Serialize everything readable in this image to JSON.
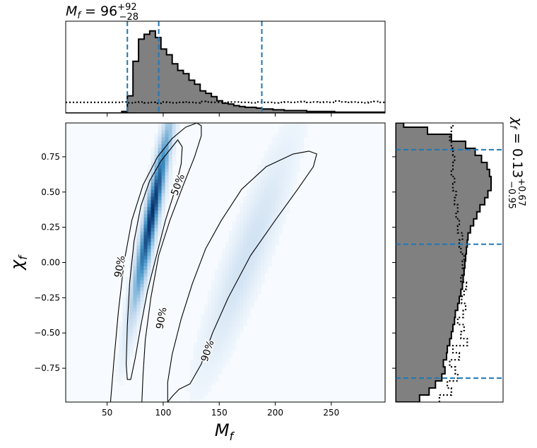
{
  "chart_data": [
    {
      "type": "heatmap",
      "panel": "joint",
      "xlabel": "M_f",
      "ylabel": "χ_f",
      "xlim": [
        13,
        298
      ],
      "ylim": [
        -0.99,
        0.99
      ],
      "xticks": [
        50,
        100,
        150,
        200,
        250
      ],
      "xticklabels": [
        "50",
        "100",
        "150",
        "200",
        "250"
      ],
      "yticks": [
        -0.75,
        -0.5,
        -0.25,
        0.0,
        0.25,
        0.5,
        0.75
      ],
      "yticklabels": [
        "−0.75",
        "−0.50",
        "−0.25",
        "0.00",
        "0.25",
        "0.50",
        "0.75"
      ],
      "colormap": "Blues",
      "contour_labels": [
        "50%",
        "90%",
        "90%",
        "90%"
      ],
      "contours": [
        {
          "name": "50%",
          "points": [
            [
              68,
              -0.83
            ],
            [
              67,
              -0.72
            ],
            [
              68,
              -0.45
            ],
            [
              70,
              -0.15
            ],
            [
              74,
              0.15
            ],
            [
              80,
              0.4
            ],
            [
              88,
              0.58
            ],
            [
              98,
              0.72
            ],
            [
              108,
              0.82
            ],
            [
              113,
              0.87
            ],
            [
              117,
              0.82
            ],
            [
              116,
              0.7
            ],
            [
              110,
              0.5
            ],
            [
              102,
              0.3
            ],
            [
              94,
              0.05
            ],
            [
              86,
              -0.2
            ],
            [
              80,
              -0.45
            ],
            [
              75,
              -0.68
            ],
            [
              71,
              -0.83
            ]
          ]
        },
        {
          "name": "90%",
          "points": [
            [
              53,
              -0.99
            ],
            [
              56,
              -0.7
            ],
            [
              60,
              -0.35
            ],
            [
              65,
              0.0
            ],
            [
              72,
              0.3
            ],
            [
              82,
              0.55
            ],
            [
              95,
              0.75
            ],
            [
              108,
              0.88
            ],
            [
              120,
              0.96
            ],
            [
              130,
              0.99
            ],
            [
              134,
              0.97
            ],
            [
              134,
              0.9
            ],
            [
              128,
              0.75
            ],
            [
              118,
              0.55
            ],
            [
              106,
              0.3
            ],
            [
              96,
              0.05
            ],
            [
              89,
              -0.25
            ],
            [
              84,
              -0.55
            ],
            [
              82,
              -0.8
            ],
            [
              81,
              -0.99
            ]
          ]
        },
        {
          "name": "90%",
          "points": [
            [
              104,
              -0.99
            ],
            [
              104,
              -0.85
            ],
            [
              108,
              -0.65
            ],
            [
              116,
              -0.4
            ],
            [
              126,
              -0.15
            ],
            [
              138,
              0.1
            ],
            [
              152,
              0.3
            ],
            [
              170,
              0.52
            ],
            [
              192,
              0.68
            ],
            [
              216,
              0.77
            ],
            [
              230,
              0.79
            ],
            [
              237,
              0.77
            ],
            [
              234,
              0.68
            ],
            [
              220,
              0.52
            ],
            [
              200,
              0.3
            ],
            [
              178,
              0.05
            ],
            [
              158,
              -0.25
            ],
            [
              144,
              -0.5
            ],
            [
              134,
              -0.72
            ],
            [
              124,
              -0.86
            ],
            [
              114,
              -0.9
            ],
            [
              108,
              -0.95
            ]
          ]
        }
      ]
    },
    {
      "type": "area",
      "panel": "top-marginal",
      "title": "M_f = 96^{+92}_{-28}",
      "median": 96,
      "interval": [
        68,
        188
      ],
      "x": [
        13,
        63,
        68,
        73,
        78,
        83,
        88,
        93,
        98,
        103,
        108,
        113,
        118,
        123,
        128,
        133,
        138,
        143,
        148,
        153,
        158,
        163,
        168,
        173,
        178,
        183,
        188,
        193,
        198,
        203,
        208,
        213,
        218,
        223,
        228,
        233,
        238,
        243,
        248,
        253,
        258,
        263,
        268,
        273,
        278,
        283,
        288,
        293,
        298
      ],
      "values": [
        0,
        0.02,
        0.21,
        0.63,
        0.9,
        0.96,
        1.0,
        0.92,
        0.78,
        0.71,
        0.6,
        0.52,
        0.48,
        0.4,
        0.35,
        0.27,
        0.24,
        0.2,
        0.15,
        0.12,
        0.11,
        0.09,
        0.08,
        0.07,
        0.07,
        0.06,
        0.05,
        0.05,
        0.04,
        0.04,
        0.03,
        0.03,
        0.03,
        0.03,
        0.02,
        0.02,
        0.02,
        0.02,
        0.02,
        0.01,
        0.01,
        0.01,
        0.01,
        0.01,
        0.01,
        0.01,
        0.01,
        0.01,
        0.01
      ],
      "prior": [
        0.2,
        0.21,
        0.19,
        0.2,
        0.21,
        0.19,
        0.2,
        0.18,
        0.21,
        0.2,
        0.19,
        0.2,
        0.21,
        0.2,
        0.19,
        0.22,
        0.21,
        0.2,
        0.2,
        0.19,
        0.21,
        0.21,
        0.2,
        0.2,
        0.19,
        0.21,
        0.2,
        0.2,
        0.19,
        0.2,
        0.21,
        0.2,
        0.21,
        0.22,
        0.2,
        0.21,
        0.2,
        0.21,
        0.2,
        0.23,
        0.21,
        0.2,
        0.21,
        0.2,
        0.19,
        0.21,
        0.22,
        0.2,
        0.21
      ]
    },
    {
      "type": "area",
      "panel": "right-marginal",
      "title": "χ_f = 0.13^{+0.67}_{-0.95}",
      "median": 0.13,
      "interval": [
        -0.82,
        0.8
      ],
      "y": [
        -0.99,
        -0.94,
        -0.89,
        -0.84,
        -0.79,
        -0.74,
        -0.69,
        -0.64,
        -0.59,
        -0.54,
        -0.49,
        -0.44,
        -0.39,
        -0.34,
        -0.29,
        -0.24,
        -0.19,
        -0.14,
        -0.09,
        -0.04,
        0.01,
        0.06,
        0.11,
        0.16,
        0.21,
        0.26,
        0.31,
        0.36,
        0.41,
        0.46,
        0.51,
        0.56,
        0.61,
        0.66,
        0.71,
        0.76,
        0.81,
        0.86,
        0.91,
        0.96
      ],
      "values": [
        0.3,
        0.42,
        0.5,
        0.58,
        0.62,
        0.6,
        0.64,
        0.65,
        0.68,
        0.7,
        0.72,
        0.74,
        0.75,
        0.78,
        0.8,
        0.82,
        0.84,
        0.85,
        0.86,
        0.87,
        0.88,
        0.89,
        0.9,
        0.91,
        0.94,
        0.98,
        1.02,
        1.06,
        1.12,
        1.16,
        1.2,
        1.2,
        1.18,
        1.15,
        1.08,
        1.0,
        0.88,
        0.7,
        0.4,
        0.1
      ],
      "prior": [
        0.55,
        0.7,
        0.65,
        0.78,
        0.75,
        0.68,
        0.8,
        0.72,
        0.9,
        0.82,
        0.86,
        0.78,
        0.85,
        0.88,
        0.83,
        0.86,
        0.89,
        0.82,
        0.86,
        0.84,
        0.86,
        0.82,
        0.8,
        0.84,
        0.78,
        0.8,
        0.76,
        0.78,
        0.74,
        0.76,
        0.72,
        0.74,
        0.7,
        0.72,
        0.74,
        0.72,
        0.7,
        0.68,
        0.7,
        0.72
      ]
    }
  ]
}
